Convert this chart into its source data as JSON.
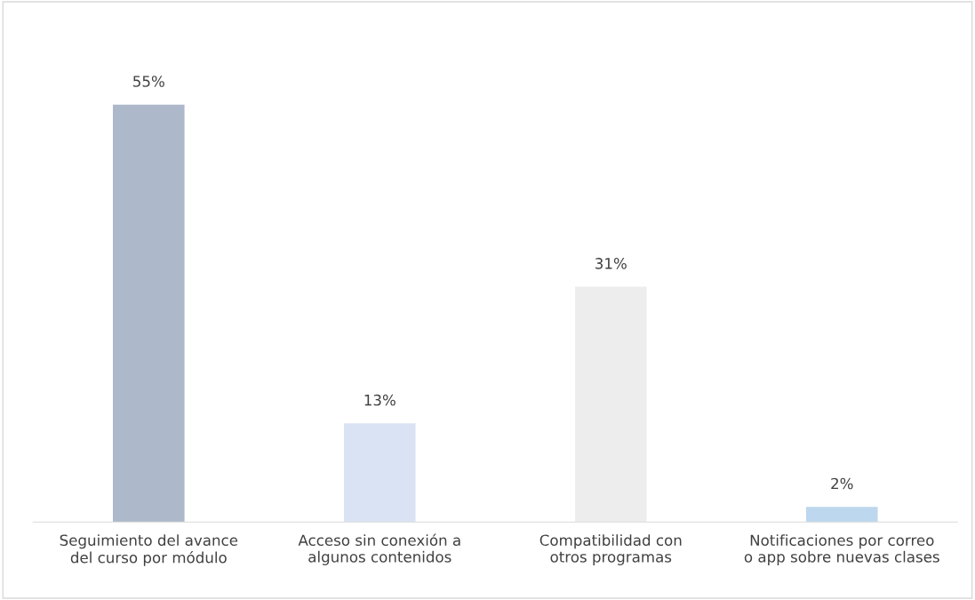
{
  "chart_data": {
    "type": "bar",
    "categories": [
      "Seguimiento del avance\ndel curso por módulo",
      "Acceso sin conexión a\nalgunos contenidos",
      "Compatibilidad con\notros programas",
      "Notificaciones por correo\no app sobre nuevas clases"
    ],
    "values": [
      55,
      13,
      31,
      2
    ],
    "value_labels": [
      "55%",
      "13%",
      "31%",
      "2%"
    ],
    "colors": [
      "#adb9ca",
      "#dae3f3",
      "#ededed",
      "#bdd7ee"
    ],
    "grid": false,
    "legend": false,
    "tick_labels": "x"
  }
}
